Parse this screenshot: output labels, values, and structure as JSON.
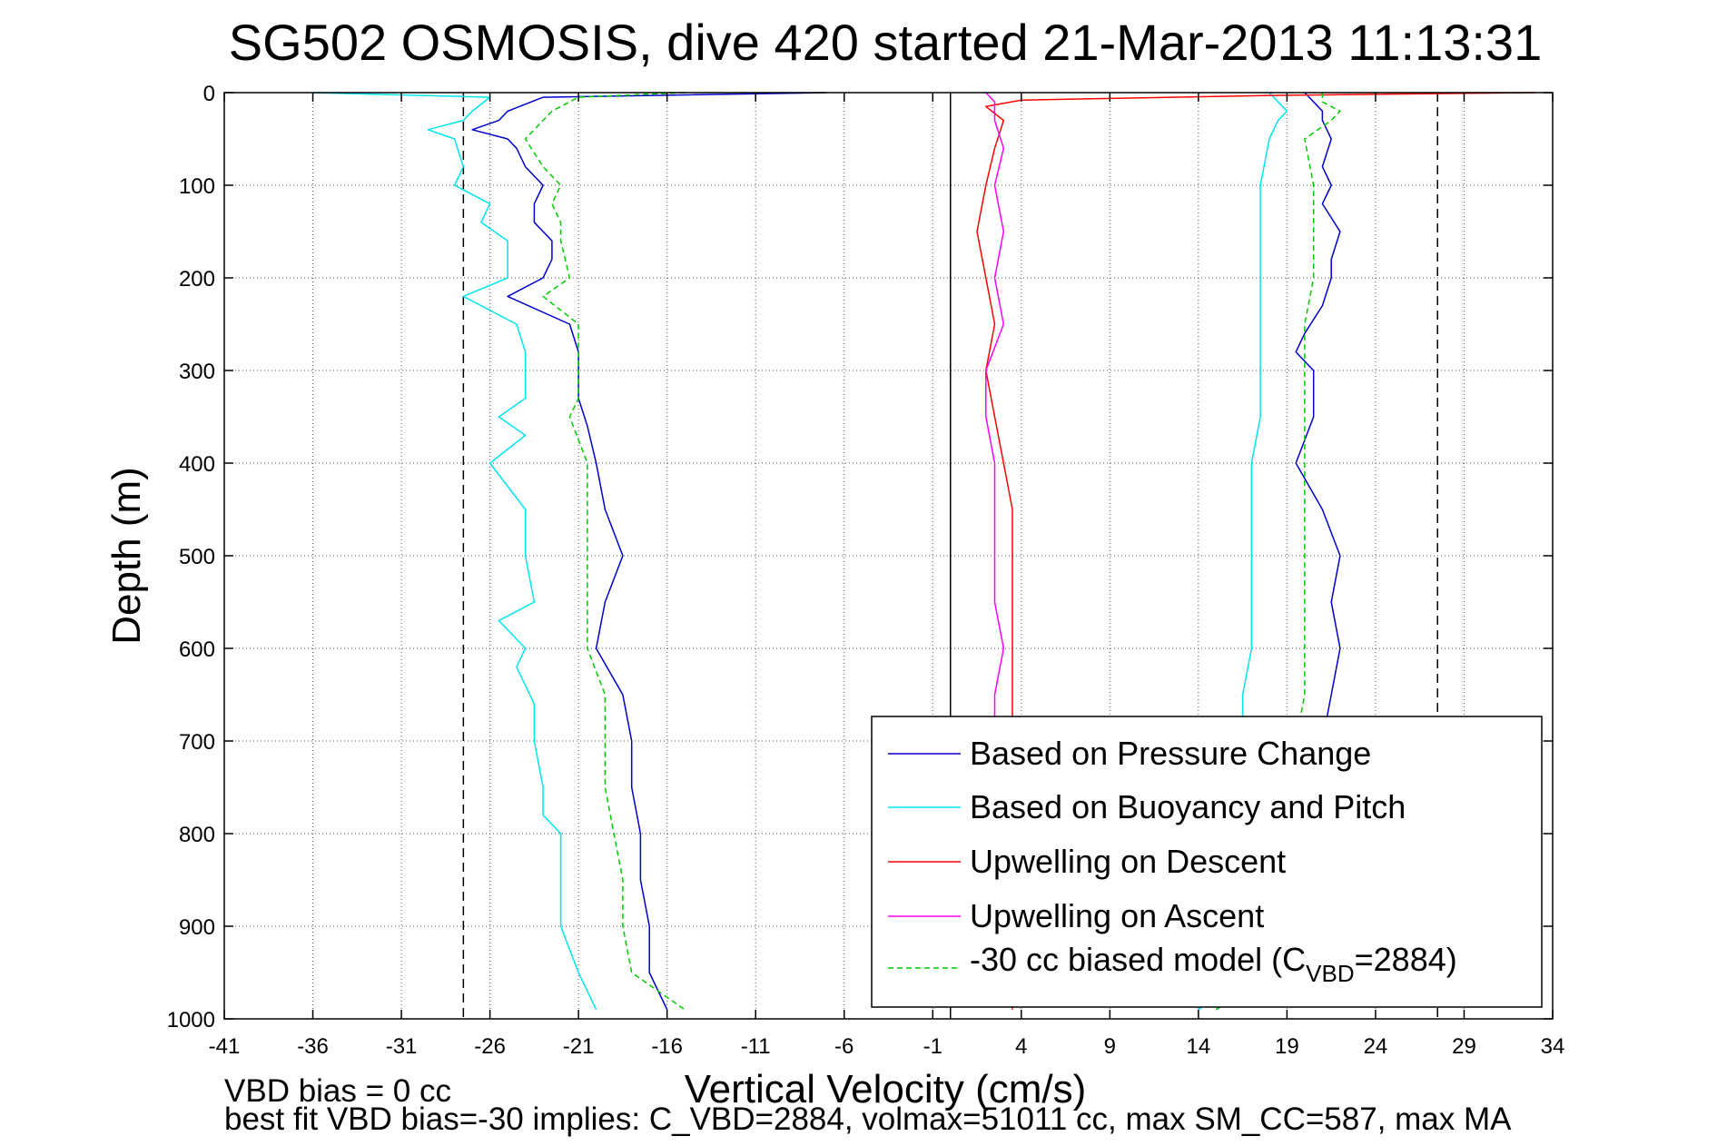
{
  "chart_data": {
    "type": "line",
    "title": "SG502 OSMOSIS, dive 420 started 21-Mar-2013 11:13:31",
    "xlabel": "Vertical Velocity (cm/s)",
    "ylabel": "Depth (m)",
    "xlim": [
      -41,
      34
    ],
    "ylim": [
      0,
      1000
    ],
    "y_reversed": true,
    "grid": true,
    "legend_position": "bottom-right",
    "x_ticks": [
      "-41",
      "-36",
      "-31",
      "-26",
      "-21",
      "-16",
      "-11",
      "-6",
      "-1",
      "4",
      "9",
      "14",
      "19",
      "24",
      "29",
      "34"
    ],
    "y_ticks": [
      "0",
      "100",
      "200",
      "300",
      "400",
      "500",
      "600",
      "700",
      "800",
      "900",
      "1000"
    ],
    "reference_lines": [
      {
        "x": -27.5,
        "style": "dashed",
        "color": "#000000"
      },
      {
        "x": 0,
        "style": "solid",
        "color": "#000000"
      },
      {
        "x": 27.5,
        "style": "dashed",
        "color": "#000000"
      }
    ],
    "series": [
      {
        "name": "Based on Pressure Change",
        "color": "#0000cc",
        "style": "solid",
        "segments": [
          {
            "depth": [
              0,
              5,
              20,
              30,
              40,
              50,
              60,
              80,
              100,
              120,
              140,
              160,
              180,
              200,
              220,
              250,
              280,
              300,
              330,
              360,
              400,
              450,
              500,
              550,
              600,
              650,
              700,
              750,
              800,
              850,
              900,
              950,
              990
            ],
            "velocity": [
              -7,
              -23,
              -25,
              -25.5,
              -27,
              -25,
              -24.5,
              -24,
              -23,
              -23.5,
              -23.5,
              -22.5,
              -22.5,
              -23,
              -25,
              -21.5,
              -21,
              -21,
              -21,
              -20.5,
              -20,
              -19.5,
              -18.5,
              -19.5,
              -20,
              -18.5,
              -18,
              -18,
              -17.5,
              -17.5,
              -17,
              -17,
              -16
            ]
          },
          {
            "depth": [
              0,
              10,
              20,
              30,
              50,
              80,
              100,
              120,
              150,
              180,
              200,
              230,
              260,
              280,
              300,
              350,
              400,
              450,
              500,
              550,
              600,
              650,
              700,
              750,
              800,
              850,
              900,
              950,
              990
            ],
            "velocity": [
              20,
              20.5,
              21,
              21,
              21.5,
              21,
              21.5,
              21,
              22,
              21.5,
              21.5,
              21,
              20,
              19.5,
              20.5,
              20.5,
              19.5,
              21,
              22,
              21.5,
              22,
              21.5,
              21,
              20.5,
              20,
              19.5,
              19,
              18,
              15
            ]
          }
        ]
      },
      {
        "name": "Based on Buoyancy and Pitch",
        "color": "#00e5ee",
        "style": "solid",
        "segments": [
          {
            "depth": [
              0,
              5,
              20,
              30,
              40,
              50,
              80,
              100,
              120,
              140,
              160,
              180,
              200,
              220,
              250,
              280,
              300,
              330,
              350,
              370,
              400,
              450,
              500,
              550,
              570,
              600,
              620,
              660,
              700,
              750,
              780,
              800,
              850,
              900,
              950,
              990
            ],
            "velocity": [
              -36,
              -26,
              -27,
              -27.5,
              -29.5,
              -28,
              -27.5,
              -28,
              -26,
              -26.5,
              -25,
              -25,
              -25,
              -27.5,
              -24.5,
              -24,
              -24,
              -24,
              -25.5,
              -24,
              -26,
              -24,
              -24,
              -23.5,
              -25.5,
              -24,
              -24.5,
              -23.5,
              -23.5,
              -23,
              -23,
              -22,
              -22,
              -22,
              -21,
              -20
            ]
          },
          {
            "depth": [
              0,
              10,
              20,
              30,
              50,
              100,
              150,
              200,
              250,
              300,
              350,
              400,
              450,
              500,
              550,
              600,
              650,
              700,
              750,
              800,
              850,
              900,
              950,
              990
            ],
            "velocity": [
              18,
              18.5,
              19,
              18.5,
              18,
              17.5,
              17.5,
              17.5,
              17.5,
              17.5,
              17.5,
              17,
              17,
              17,
              17,
              17,
              16.5,
              16.5,
              16.5,
              16.5,
              17,
              16.5,
              17,
              14
            ]
          }
        ]
      },
      {
        "name": "Upwelling on Descent",
        "color": "#ff0000",
        "style": "solid",
        "segments": [
          {
            "depth": [
              0,
              3,
              8,
              15,
              30,
              60,
              100,
              150,
              200,
              250,
              300,
              350,
              400,
              450,
              500,
              550,
              600,
              650,
              700,
              800,
              900,
              990
            ],
            "velocity": [
              33,
              18,
              4,
              2,
              3,
              2.5,
              2,
              1.5,
              2,
              2.5,
              2,
              2.5,
              3,
              3.5,
              3.5,
              3.5,
              3.5,
              3.5,
              3.5,
              3.5,
              3.5,
              3.5
            ]
          }
        ]
      },
      {
        "name": "Upwelling on Ascent",
        "color": "#ff00ff",
        "style": "solid",
        "segments": [
          {
            "depth": [
              0,
              10,
              30,
              60,
              100,
              150,
              200,
              250,
              300,
              350,
              400,
              450,
              500,
              550,
              600,
              650,
              700
            ],
            "velocity": [
              2,
              2.5,
              2.5,
              3,
              2.5,
              3,
              2.5,
              3,
              2,
              2,
              2.5,
              2.5,
              2.5,
              2.5,
              3,
              2.5,
              2.5
            ]
          }
        ]
      },
      {
        "name": "-30 cc biased model (C_VBD=2884)",
        "color": "#00cc00",
        "style": "dashed",
        "segments": [
          {
            "depth": [
              0,
              5,
              20,
              30,
              50,
              80,
              100,
              120,
              140,
              160,
              200,
              220,
              250,
              300,
              330,
              350,
              400,
              450,
              500,
              550,
              600,
              650,
              700,
              750,
              800,
              850,
              900,
              950,
              990
            ],
            "velocity": [
              -15,
              -21,
              -22.5,
              -23,
              -24,
              -23,
              -22,
              -22.5,
              -22,
              -22,
              -21.5,
              -23,
              -21,
              -21,
              -21,
              -21.5,
              -20.5,
              -20.5,
              -20.5,
              -20.5,
              -20.5,
              -19.5,
              -19.5,
              -19.5,
              -19,
              -18.5,
              -18.5,
              -18,
              -15
            ]
          },
          {
            "depth": [
              0,
              10,
              20,
              30,
              50,
              100,
              150,
              200,
              250,
              300,
              350,
              400,
              450,
              500,
              550,
              600,
              650,
              700,
              750,
              800,
              850,
              900,
              950,
              990
            ],
            "velocity": [
              21,
              21,
              22,
              21.5,
              20,
              20.5,
              20.5,
              20.5,
              20,
              20,
              20,
              20,
              20,
              20,
              20,
              20,
              20,
              19.5,
              19.5,
              19.5,
              19,
              19,
              18.5,
              15
            ]
          }
        ]
      }
    ],
    "legend_subscript": {
      "prefix": "-30 cc biased model (C",
      "sub": "VBD",
      "suffix": "=2884)"
    },
    "footer": {
      "line1": "VBD bias = 0 cc",
      "line2": "best fit VBD bias=-30 implies: C_VBD=2884, volmax=51011 cc, max SM_CC=587, max MA"
    }
  }
}
